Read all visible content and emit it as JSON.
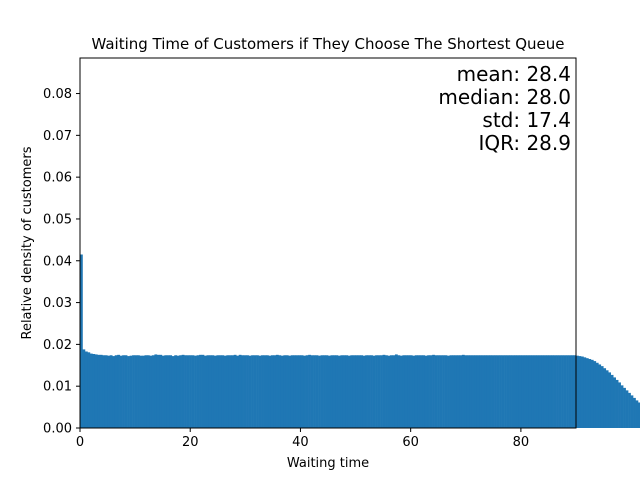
{
  "chart_data": {
    "type": "bar",
    "title": "Waiting Time of Customers if They Choose The Shortest Queue",
    "xlabel": "Waiting time",
    "ylabel": "Relative density of customers",
    "xlim": [
      0,
      90
    ],
    "ylim": [
      0,
      0.0885
    ],
    "xticks": [
      "0",
      "20",
      "40",
      "60",
      "80"
    ],
    "yticks": [
      "0.00",
      "0.01",
      "0.02",
      "0.03",
      "0.04",
      "0.05",
      "0.06",
      "0.07",
      "0.08"
    ],
    "bar_color": "#1f77b4",
    "bin_width": 0.45,
    "bin_start": 0,
    "values": [
      0.0415,
      0.0188,
      0.0183,
      0.0181,
      0.0178,
      0.0177,
      0.0176,
      0.0175,
      0.0175,
      0.0174,
      0.0174,
      0.0173,
      0.0174,
      0.0172,
      0.0174,
      0.0175,
      0.0173,
      0.0174,
      0.0174,
      0.0172,
      0.0173,
      0.0174,
      0.0174,
      0.0174,
      0.0173,
      0.0173,
      0.0174,
      0.0174,
      0.0173,
      0.0174,
      0.0176,
      0.0175,
      0.0175,
      0.0173,
      0.0174,
      0.0174,
      0.0174,
      0.0172,
      0.0174,
      0.0173,
      0.0174,
      0.0175,
      0.0174,
      0.0174,
      0.0174,
      0.0174,
      0.0173,
      0.0174,
      0.0175,
      0.0175,
      0.0173,
      0.0174,
      0.0174,
      0.0174,
      0.0173,
      0.0174,
      0.0174,
      0.0174,
      0.0173,
      0.0174,
      0.0174,
      0.0174,
      0.0175,
      0.0173,
      0.0175,
      0.0174,
      0.0174,
      0.0174,
      0.0173,
      0.0174,
      0.0174,
      0.0174,
      0.0173,
      0.0174,
      0.0174,
      0.0174,
      0.0173,
      0.0174,
      0.0174,
      0.0175,
      0.0174,
      0.0173,
      0.0174,
      0.0174,
      0.0173,
      0.0174,
      0.0174,
      0.0174,
      0.0174,
      0.0174,
      0.0173,
      0.0174,
      0.0175,
      0.0174,
      0.0174,
      0.0174,
      0.0173,
      0.0174,
      0.0174,
      0.0174,
      0.0173,
      0.0174,
      0.0174,
      0.0174,
      0.0173,
      0.0174,
      0.0174,
      0.0174,
      0.0173,
      0.0174,
      0.0174,
      0.0174,
      0.0174,
      0.0174,
      0.0173,
      0.0174,
      0.0174,
      0.0174,
      0.0173,
      0.0174,
      0.0174,
      0.0174,
      0.0175,
      0.0174,
      0.0173,
      0.0174,
      0.0174,
      0.0176,
      0.0174,
      0.0173,
      0.0174,
      0.0174,
      0.0174,
      0.0174,
      0.0173,
      0.0174,
      0.0174,
      0.0174,
      0.0174,
      0.0173,
      0.0174,
      0.0174,
      0.0175,
      0.0174,
      0.0174,
      0.0174,
      0.0174,
      0.0174,
      0.0173,
      0.0174,
      0.0174,
      0.0174,
      0.0174,
      0.0174,
      0.0175,
      0.0174,
      0.0174,
      0.0174,
      0.0174,
      0.0174,
      0.0174,
      0.0174,
      0.0174,
      0.0174,
      0.0174,
      0.0174,
      0.0174,
      0.0174,
      0.0174,
      0.0174,
      0.0174,
      0.0174,
      0.0174,
      0.0174,
      0.0174,
      0.0174,
      0.0174,
      0.0174,
      0.0174,
      0.0174,
      0.0174,
      0.0174,
      0.0174,
      0.0174,
      0.0174,
      0.0174,
      0.0174,
      0.0174,
      0.0174,
      0.0174,
      0.0174,
      0.0174,
      0.0174,
      0.0174,
      0.0174,
      0.0174,
      0.0174,
      0.0174,
      0.0174,
      0.0174,
      0.0173,
      0.0172,
      0.0171,
      0.0169,
      0.0167,
      0.0165,
      0.0163,
      0.016,
      0.0156,
      0.0152,
      0.0148,
      0.0143,
      0.0138,
      0.0133,
      0.0127,
      0.0121,
      0.0115,
      0.0109,
      0.0102,
      0.0096,
      0.009,
      0.0084,
      0.0078,
      0.0072,
      0.0066,
      0.0061,
      0.0055,
      0.005,
      0.0045,
      0.004,
      0.0036,
      0.0032,
      0.0028,
      0.0025,
      0.0022,
      0.0019,
      0.0016,
      0.0014,
      0.0012,
      0.001,
      0.0008,
      0.0007,
      0.0006,
      0.0005,
      0.0004,
      0.0003,
      0.0002,
      0.0002,
      0.0001,
      0.0001,
      0.0001,
      0.0001,
      0.0,
      0.0,
      0.0,
      0.0,
      0.0,
      0.0,
      0.0,
      0.0,
      0.0,
      0.0,
      0.0
    ],
    "annotations": {
      "mean": "mean: 28.4",
      "median": "median: 28.0",
      "std": "std: 17.4",
      "iqr": "IQR: 28.9"
    },
    "annotation_placement": "top-right",
    "grid": false,
    "legend": "none"
  }
}
